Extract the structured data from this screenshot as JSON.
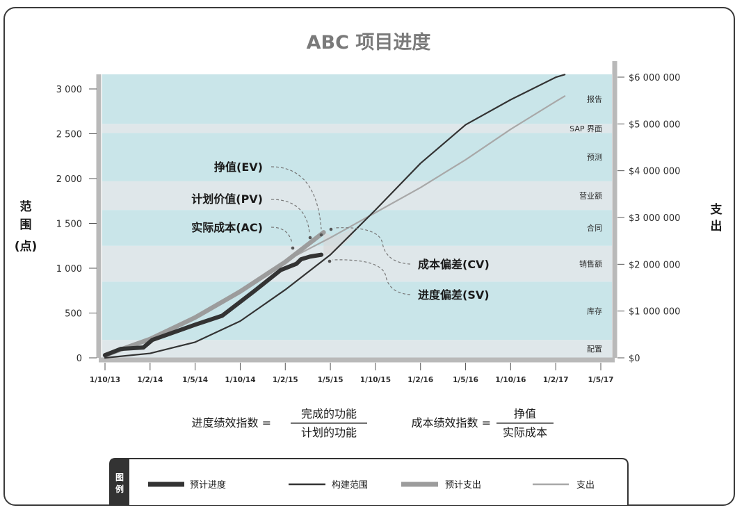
{
  "chart_data": {
    "type": "line",
    "title": "ABC 项目进度",
    "ylabel_left": [
      "范",
      "围",
      "(点)"
    ],
    "ylabel_right": [
      "支",
      "出"
    ],
    "x_ticks": [
      "1/10/13",
      "1/2/14",
      "1/5/14",
      "1/10/14",
      "1/2/15",
      "1/5/15",
      "1/10/15",
      "1/2/16",
      "1/5/16",
      "1/10/16",
      "1/2/17",
      "1/5/17"
    ],
    "y_left_ticks": [
      "0",
      "500",
      "1 000",
      "1 500",
      "2 000",
      "2 500",
      "3 000"
    ],
    "y_left_values": [
      0,
      500,
      1000,
      1500,
      2000,
      2500,
      3000
    ],
    "y_right_ticks": [
      "$0",
      "$1 000 000",
      "$2 000 000",
      "$3 000 000",
      "$4 000 000",
      "$5 000 000",
      "$6 000 000"
    ],
    "y_right_values": [
      0,
      1000000,
      2000000,
      3000000,
      4000000,
      5000000,
      6000000
    ],
    "ylim_left": [
      0,
      3000
    ],
    "ylim_right": [
      0,
      6000000
    ],
    "bands": [
      {
        "label": "配置",
        "from": 0,
        "to": 200
      },
      {
        "label": "库存",
        "from": 200,
        "to": 850
      },
      {
        "label": "销售额",
        "from": 850,
        "to": 1250
      },
      {
        "label": "合同",
        "from": 1250,
        "to": 1650
      },
      {
        "label": "营业额",
        "from": 1650,
        "to": 1970
      },
      {
        "label": "预测",
        "from": 1970,
        "to": 2510
      },
      {
        "label": "SAP 界面",
        "from": 2510,
        "to": 2610
      },
      {
        "label": "报告",
        "from": 2610,
        "to": 3150
      }
    ],
    "band_colors": [
      "#dfe7ea",
      "#c9e5e9"
    ],
    "series": [
      {
        "name": "预计进度",
        "color": "#333333",
        "points": [
          [
            0,
            30
          ],
          [
            0.35,
            100
          ],
          [
            0.85,
            115
          ],
          [
            1.05,
            200
          ],
          [
            2,
            370
          ],
          [
            2.6,
            470
          ],
          [
            3.3,
            740
          ],
          [
            3.9,
            980
          ],
          [
            4.25,
            1050
          ],
          [
            4.35,
            1100
          ],
          [
            4.55,
            1130
          ],
          [
            4.8,
            1150
          ]
        ]
      },
      {
        "name": "构建范围",
        "color": "#333333",
        "points": [
          [
            0,
            0
          ],
          [
            1,
            50
          ],
          [
            2,
            175
          ],
          [
            3,
            410
          ],
          [
            4,
            760
          ],
          [
            5,
            1150
          ],
          [
            6,
            1650
          ],
          [
            7,
            2170
          ],
          [
            8,
            2600
          ],
          [
            9,
            2880
          ],
          [
            10,
            3130
          ],
          [
            10.2,
            3160
          ]
        ]
      },
      {
        "name": "预计支出",
        "color": "#9c9c9c",
        "points": [
          [
            0,
            30
          ],
          [
            1,
            210
          ],
          [
            2,
            450
          ],
          [
            3,
            740
          ],
          [
            4,
            1070
          ],
          [
            4.85,
            1400
          ]
        ]
      },
      {
        "name": "支出",
        "color": "#a8a8a8",
        "points": [
          [
            0,
            30
          ],
          [
            1,
            210
          ],
          [
            2,
            460
          ],
          [
            3,
            760
          ],
          [
            4,
            1080
          ],
          [
            5,
            1340
          ],
          [
            6,
            1620
          ],
          [
            7,
            1900
          ],
          [
            8,
            2210
          ],
          [
            9,
            2550
          ],
          [
            10,
            2860
          ],
          [
            10.2,
            2920
          ]
        ]
      }
    ],
    "annotations": {
      "ev": "挣值(EV)",
      "pv": "计划价值(PV)",
      "ac": "实际成本(AC)",
      "cv": "成本偏差(CV)",
      "sv": "进度偏差(SV)"
    }
  },
  "formulas": {
    "spi_label": "进度绩效指数 =",
    "spi_num": "完成的功能",
    "spi_den": "计划的功能",
    "cpi_label": "成本绩效指数 =",
    "cpi_num": "挣值",
    "cpi_den": "实际成本"
  },
  "legend": {
    "title": [
      "图",
      "例"
    ],
    "items": [
      {
        "label": "预计进度"
      },
      {
        "label": "构建范围"
      },
      {
        "label": "预计支出"
      },
      {
        "label": "支出"
      }
    ]
  }
}
